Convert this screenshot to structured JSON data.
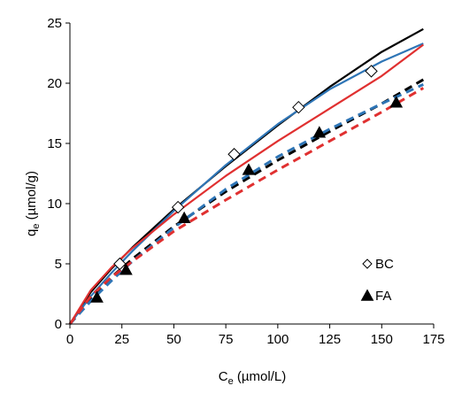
{
  "chart_data": {
    "type": "scatter",
    "xlabel": "C",
    "xlabel_sub": "e",
    "xlabel_unit": " (µmol/L)",
    "ylabel": "q",
    "ylabel_sub": "e",
    "ylabel_unit": " (µmol/g)",
    "xlim": [
      0,
      175
    ],
    "ylim": [
      0,
      25
    ],
    "xticks": [
      0,
      25,
      50,
      75,
      100,
      125,
      150,
      175
    ],
    "yticks": [
      0,
      5,
      10,
      15,
      20,
      25
    ],
    "grid": false,
    "legend_position": "right-lower",
    "series": [
      {
        "name": "BC",
        "marker": "diamond-open",
        "points": [
          [
            24,
            5.0
          ],
          [
            52,
            9.7
          ],
          [
            79,
            14.1
          ],
          [
            110,
            18.0
          ],
          [
            145,
            21.0
          ]
        ]
      },
      {
        "name": "FA",
        "marker": "triangle-filled",
        "points": [
          [
            13,
            2.2
          ],
          [
            27,
            4.5
          ],
          [
            55,
            8.8
          ],
          [
            86,
            12.8
          ],
          [
            120,
            15.9
          ],
          [
            157,
            18.4
          ]
        ]
      }
    ],
    "fit_curves": [
      {
        "color": "#000000",
        "style": "solid",
        "x": [
          0,
          10,
          20,
          30,
          50,
          75,
          100,
          125,
          150,
          170
        ],
        "y": [
          0,
          2.64,
          4.6,
          6.35,
          9.52,
          13.1,
          16.5,
          19.7,
          22.6,
          24.5
        ]
      },
      {
        "color": "#2e75b6",
        "style": "solid",
        "x": [
          0,
          10,
          20,
          30,
          50,
          75,
          100,
          125,
          150,
          170
        ],
        "y": [
          0,
          2.3,
          4.25,
          6.05,
          9.4,
          13.2,
          16.6,
          19.5,
          21.8,
          23.3
        ]
      },
      {
        "color": "#e03030",
        "style": "solid",
        "x": [
          0,
          10,
          20,
          30,
          50,
          75,
          100,
          125,
          150,
          170
        ],
        "y": [
          0,
          2.8,
          4.7,
          6.3,
          9.1,
          12.3,
          15.2,
          17.9,
          20.6,
          23.2
        ]
      },
      {
        "color": "#000000",
        "style": "dashed",
        "x": [
          0,
          10,
          20,
          30,
          50,
          75,
          100,
          125,
          150,
          170
        ],
        "y": [
          0,
          2.2,
          3.9,
          5.4,
          8.1,
          11.0,
          13.6,
          16.0,
          18.3,
          20.3
        ]
      },
      {
        "color": "#2e75b6",
        "style": "dashed",
        "x": [
          0,
          10,
          20,
          30,
          50,
          75,
          100,
          125,
          150,
          170
        ],
        "y": [
          0,
          1.9,
          3.6,
          5.2,
          8.0,
          11.2,
          13.9,
          16.2,
          18.3,
          19.9
        ]
      },
      {
        "color": "#e03030",
        "style": "dashed",
        "x": [
          0,
          10,
          20,
          30,
          50,
          75,
          100,
          125,
          150,
          170
        ],
        "y": [
          0,
          2.3,
          3.9,
          5.2,
          7.7,
          10.3,
          12.8,
          15.2,
          17.6,
          19.6
        ]
      }
    ]
  }
}
